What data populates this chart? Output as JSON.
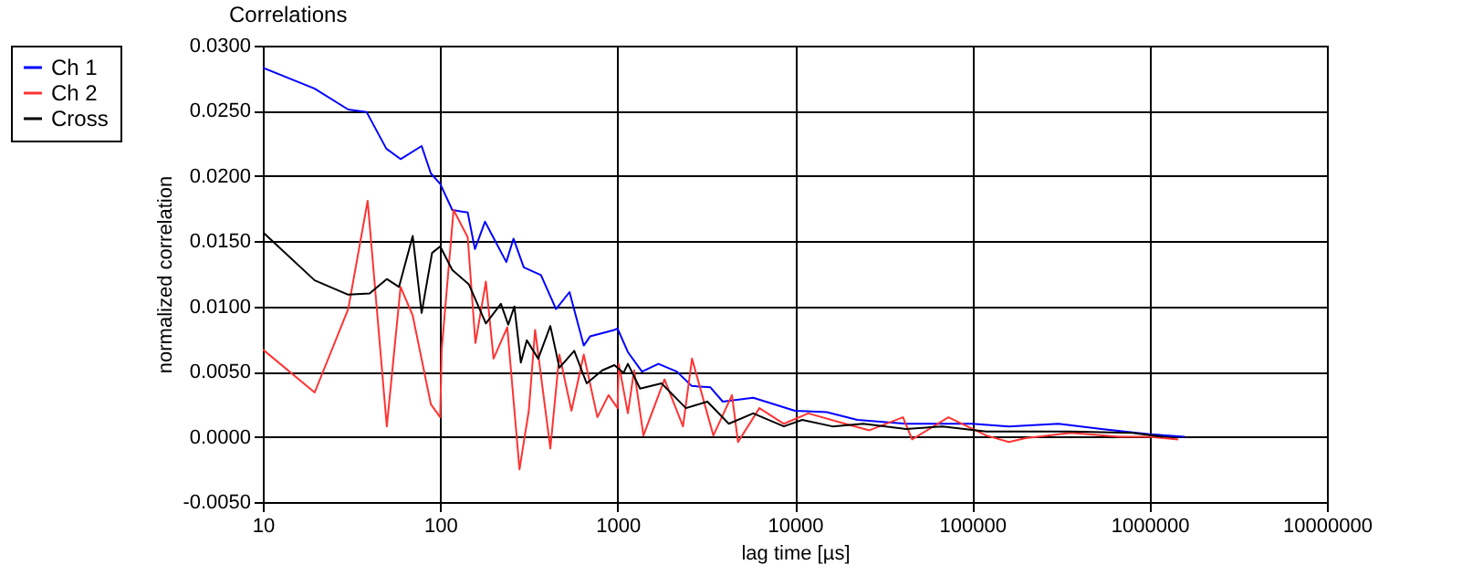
{
  "chart_data": {
    "type": "line",
    "title": "Correlations",
    "xlabel": "lag time [µs]",
    "ylabel": "normalized correlation",
    "log": "x",
    "grid": true,
    "legend": "top left",
    "marker": "none",
    "line_style": "solid",
    "xlim": [
      10,
      10000000
    ],
    "xticks": [
      10,
      100,
      1000,
      10000,
      100000,
      1000000,
      10000000
    ],
    "ylim": [
      -0.005,
      0.03
    ],
    "yticks": [
      {
        "value": -0.005,
        "label": "-0.0050"
      },
      {
        "value": 0,
        "label": "0.0000"
      },
      {
        "value": 0.005,
        "label": "0.0050"
      },
      {
        "value": 0.01,
        "label": "0.0100"
      },
      {
        "value": 0.015,
        "label": "0.0150"
      },
      {
        "value": 0.02,
        "label": "0.0200"
      },
      {
        "value": 0.025,
        "label": "0.0250"
      },
      {
        "value": 0.03,
        "label": "0.0300"
      }
    ],
    "series": [
      {
        "name": "Ch 1",
        "color": "#0000ff",
        "x": [
          10,
          19.6,
          30.3,
          38.5,
          49.7,
          59.8,
          78.6,
          88.6,
          100,
          117,
          143,
          157,
          179,
          236,
          259,
          296,
          370,
          450,
          536,
          645,
          700,
          960,
          1000,
          1144,
          1374,
          1700,
          2160,
          2620,
          3340,
          3920,
          5820,
          10000,
          15100,
          22500,
          42400,
          100000,
          161000,
          306000,
          536000,
          1000000,
          1580000
        ],
        "values": [
          0.0283,
          0.0267,
          0.0251,
          0.0249,
          0.0221,
          0.0213,
          0.0223,
          0.0202,
          0.0194,
          0.0174,
          0.0172,
          0.0144,
          0.0165,
          0.0134,
          0.0152,
          0.013,
          0.0124,
          0.0098,
          0.0111,
          0.007,
          0.0077,
          0.0082,
          0.0083,
          0.0065,
          0.005,
          0.0056,
          0.005,
          0.0039,
          0.0038,
          0.0027,
          0.003,
          0.002,
          0.0019,
          0.0013,
          0.001,
          0.001,
          0.0008,
          0.001,
          0.0006,
          0.0002,
          0.0
        ]
      },
      {
        "name": "Ch 2",
        "color": "#ff3333",
        "x": [
          10,
          19.6,
          30.3,
          39,
          50,
          59.8,
          70,
          88.6,
          100,
          102,
          119,
          143,
          158,
          181,
          200,
          239,
          280,
          316,
          343,
          418,
          470,
          550,
          645,
          770,
          890,
          1000,
          1016,
          1144,
          1240,
          1400,
          1840,
          2340,
          2630,
          3470,
          4420,
          4780,
          6310,
          8670,
          11900,
          19200,
          26300,
          40700,
          45800,
          73400,
          120000,
          161000,
          200000,
          360000,
          680000,
          1000000,
          1450000
        ],
        "values": [
          0.0067,
          0.0034,
          0.0098,
          0.0181,
          0.0008,
          0.0115,
          0.0093,
          0.0025,
          0.0015,
          0.0067,
          0.0174,
          0.0153,
          0.0072,
          0.0119,
          0.006,
          0.0084,
          -0.0025,
          0.002,
          0.0082,
          -0.0009,
          0.0063,
          0.002,
          0.0063,
          0.0015,
          0.0032,
          0.0022,
          0.0056,
          0.0018,
          0.0051,
          0.0001,
          0.0044,
          0.0008,
          0.006,
          0.0001,
          0.0032,
          -0.0004,
          0.0022,
          0.001,
          0.0018,
          0.001,
          0.0005,
          0.0015,
          -0.0002,
          0.0015,
          0.0001,
          -0.0004,
          -0.0001,
          0.0003,
          0.0,
          0.0,
          -0.0002
        ]
      },
      {
        "name": "Cross",
        "color": "#000000",
        "x": [
          10,
          19.6,
          30.3,
          40,
          50,
          58.6,
          70,
          78.6,
          90,
          100,
          117,
          145,
          181,
          220,
          242,
          262,
          285,
          308,
          357,
          418,
          470,
          570,
          670,
          820,
          960,
          1080,
          1144,
          1340,
          1770,
          2430,
          3210,
          4240,
          5820,
          8670,
          11000,
          16300,
          24300,
          42400,
          68000,
          120000,
          161000,
          360000,
          800000,
          1190000
        ],
        "values": [
          0.0157,
          0.012,
          0.0109,
          0.011,
          0.0121,
          0.0115,
          0.0154,
          0.0095,
          0.0141,
          0.0146,
          0.0128,
          0.0117,
          0.0087,
          0.0102,
          0.0086,
          0.01,
          0.0057,
          0.0074,
          0.006,
          0.0085,
          0.0053,
          0.0066,
          0.0041,
          0.0051,
          0.0055,
          0.0049,
          0.0056,
          0.0037,
          0.0041,
          0.0022,
          0.0027,
          0.001,
          0.0018,
          0.0008,
          0.0013,
          0.0008,
          0.001,
          0.0006,
          0.0008,
          0.0004,
          0.0004,
          0.0004,
          0.0003,
          0.0
        ]
      }
    ]
  }
}
